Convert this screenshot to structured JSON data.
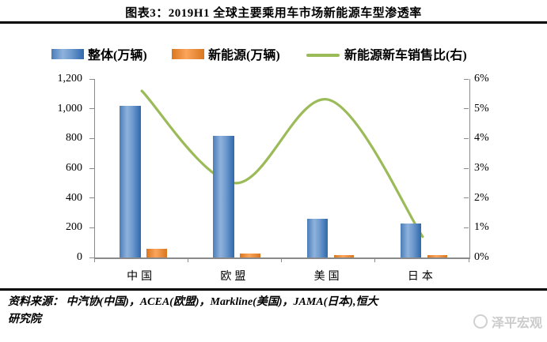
{
  "title": "图表3：2019H1 全球主要乘用车市场新能源车型渗透率",
  "legend": [
    {
      "label": "整体(万辆)",
      "kind": "bar-blue"
    },
    {
      "label": "新能源(万辆)",
      "kind": "bar-orange"
    },
    {
      "label": "新能源新车销售比(右)",
      "kind": "line-green"
    }
  ],
  "colors": {
    "bar_blue_edge": "#2f68ac",
    "bar_blue_mid": "#4a7db9",
    "bar_blue_light": "#8fb2dc",
    "bar_orange_edge": "#d9761f",
    "bar_orange_light": "#fba55c",
    "line_green": "#9bbb59",
    "axis_gray": "#8a8a8a",
    "watermark_gray": "#cbcbcb"
  },
  "chart_data": {
    "type": "bar",
    "subtype": "combo-bar-line",
    "categories": [
      "中国",
      "欧盟",
      "美国",
      "日本"
    ],
    "series": [
      {
        "name": "整体(万辆)",
        "type": "bar",
        "color": "blue",
        "axis": "left",
        "values": [
          1020,
          820,
          260,
          230
        ]
      },
      {
        "name": "新能源(万辆)",
        "type": "bar",
        "color": "orange",
        "axis": "left",
        "values": [
          60,
          25,
          18,
          15
        ]
      },
      {
        "name": "新能源新车销售比(右)",
        "type": "line",
        "color": "green",
        "axis": "right",
        "values": [
          5.6,
          2.5,
          5.3,
          0.7
        ],
        "unit": "%",
        "smooth": true
      }
    ],
    "left_axis": {
      "min": 0,
      "max": 1200,
      "ticks": [
        "0",
        "200",
        "400",
        "600",
        "800",
        "1,000",
        "1,200"
      ]
    },
    "right_axis": {
      "min": 0,
      "max": 6,
      "ticks": [
        "0%",
        "1%",
        "2%",
        "3%",
        "4%",
        "5%",
        "6%"
      ]
    },
    "grid": false,
    "legend_position": "top"
  },
  "source": {
    "line1": "资料来源： 中汽协(中国)，ACEA(欧盟)，Markline(美国)，JAMA(日本),恒大",
    "line2": "研究院"
  },
  "watermark": {
    "text": "泽平宏观"
  }
}
